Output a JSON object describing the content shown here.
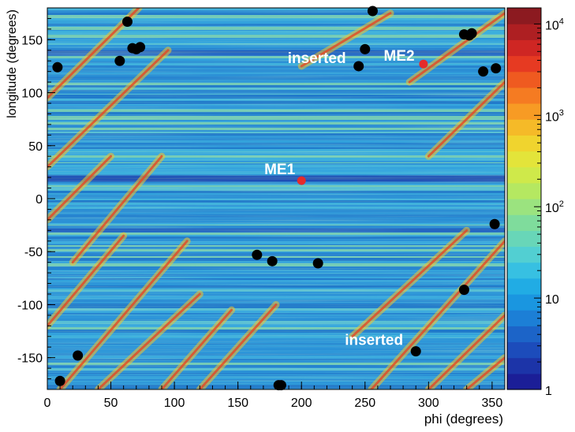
{
  "chart_data": {
    "type": "heatmap",
    "xlabel": "phi (degrees)",
    "ylabel": "longitude (degrees)",
    "xlim": [
      0,
      360
    ],
    "ylim": [
      -180,
      180
    ],
    "x_ticks": [
      0,
      50,
      100,
      150,
      200,
      250,
      300,
      350
    ],
    "y_ticks": [
      -150,
      -100,
      -50,
      0,
      50,
      100,
      150
    ],
    "colorbar": {
      "scale": "log",
      "range": [
        1,
        15000
      ],
      "tick_labels": [
        {
          "value": 1,
          "base": "1",
          "exp": ""
        },
        {
          "value": 10,
          "base": "10",
          "exp": ""
        },
        {
          "value": 100,
          "base": "10",
          "exp": "2"
        },
        {
          "value": 1000,
          "base": "10",
          "exp": "3"
        },
        {
          "value": 10000,
          "base": "10",
          "exp": "4"
        }
      ],
      "colors": [
        "#1b1e97",
        "#1c34a8",
        "#1c4cbb",
        "#1c64c8",
        "#1c7fd6",
        "#1a96e0",
        "#21ace4",
        "#37c0e2",
        "#52cfd2",
        "#68d6b8",
        "#7fdc9c",
        "#9be37f",
        "#b5e861",
        "#cfe94a",
        "#e3e43a",
        "#f0d42e",
        "#f5ba28",
        "#f79b24",
        "#f57b22",
        "#ef5a20",
        "#e63a22",
        "#cf2623",
        "#ae1f22",
        "#8c1a20"
      ]
    },
    "series": [
      {
        "marker": "black-dot",
        "points": [
          [
            8,
            124
          ],
          [
            63,
            167
          ],
          [
            57,
            130
          ],
          [
            67,
            142
          ],
          [
            70,
            141
          ],
          [
            73,
            143
          ],
          [
            250,
            141
          ],
          [
            256,
            177
          ],
          [
            328,
            155
          ],
          [
            332,
            154
          ],
          [
            334,
            156
          ],
          [
            343,
            120
          ],
          [
            353,
            123
          ],
          [
            165,
            -53
          ],
          [
            177,
            -59
          ],
          [
            213,
            -61
          ],
          [
            352,
            -24
          ],
          [
            328,
            -86
          ],
          [
            24,
            -148
          ],
          [
            10,
            -172
          ],
          [
            290,
            -144
          ],
          [
            182,
            -176
          ],
          [
            184,
            -176
          ],
          [
            245,
            125
          ]
        ]
      },
      {
        "marker": "red-dot",
        "points": [
          [
            200,
            17
          ],
          [
            296,
            127
          ]
        ]
      }
    ],
    "annotations": [
      {
        "text": "ME1",
        "x": 195,
        "y": 23
      },
      {
        "text": "ME2",
        "x": 289,
        "y": 130
      },
      {
        "text": "inserted",
        "x": 235,
        "y": 128
      },
      {
        "text": "inserted",
        "x": 280,
        "y": -138
      }
    ]
  }
}
